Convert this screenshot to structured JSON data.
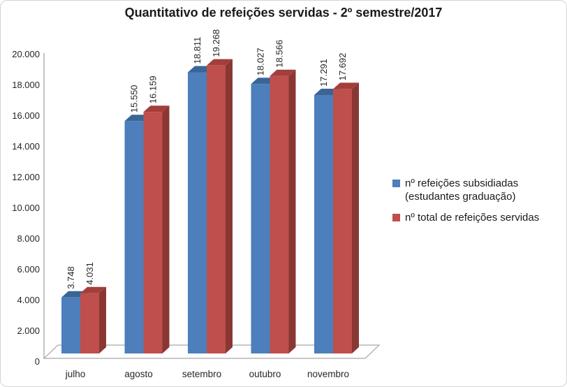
{
  "chart_data": {
    "type": "bar",
    "style": "3d-clustered",
    "title": "Quantitativo de refeições servidas - 2º semestre/2017",
    "categories": [
      "julho",
      "agosto",
      "setembro",
      "outubro",
      "novembro"
    ],
    "series": [
      {
        "name": "nº refeições subsidiadas (estudantes graduação)",
        "color": "#4C7FBC",
        "color_top": "#3A6596",
        "color_side": "#2F5586",
        "values": [
          3748,
          15550,
          18811,
          18027,
          17291
        ],
        "data_labels": [
          "3.748",
          "15.550",
          "18.811",
          "18.027",
          "17.291"
        ]
      },
      {
        "name": "nº total de refeições servidas",
        "color": "#BF4F4C",
        "color_top": "#A33E3B",
        "color_side": "#8A3734",
        "values": [
          4031,
          16159,
          19268,
          18566,
          17692
        ],
        "data_labels": [
          "4.031",
          "16.159",
          "19.268",
          "18.566",
          "17.692"
        ]
      }
    ],
    "xlabel": "",
    "ylabel": "",
    "ylim": [
      0,
      20000
    ],
    "ytick_step": 2000,
    "ytick_labels": [
      "0",
      "2.000",
      "4.000",
      "6.000",
      "8.000",
      "10.000",
      "12.000",
      "14.000",
      "16.000",
      "18.000",
      "20.000"
    ],
    "grid": false,
    "legend_position": "right",
    "colors": {
      "axis_line": "#9c9c9c",
      "floor_stroke": "#a6a6a6",
      "text": "#262626",
      "frame_border": "#d4d4d4"
    }
  }
}
